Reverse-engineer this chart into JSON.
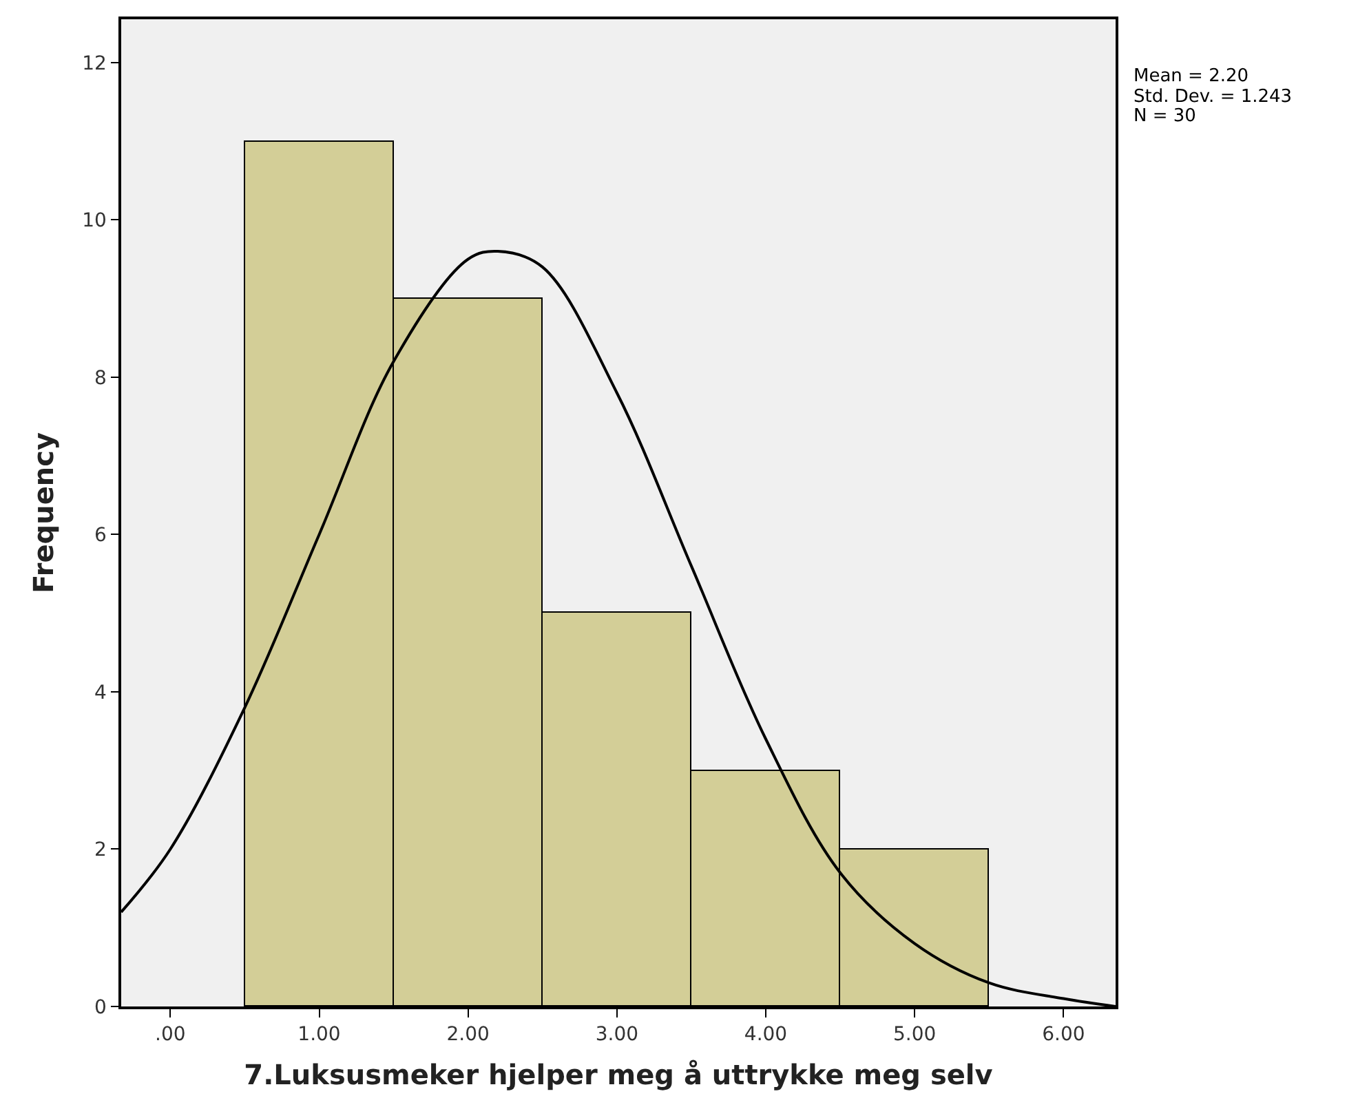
{
  "chart_data": {
    "type": "histogram",
    "xlabel": "7.Luksusmeker hjelper meg å uttrykke meg selv",
    "ylabel": "Frequency",
    "series": [
      {
        "bins": [
          0.5,
          1.5,
          2.5,
          3.5,
          4.5,
          5.5
        ],
        "values": [
          11,
          9,
          5,
          3,
          2
        ],
        "color": "#d3ce97"
      },
      {
        "type": "line",
        "x": [
          -0.33,
          0,
          0.5,
          1,
          1.5,
          2,
          2.2,
          2.5,
          3,
          3.5,
          4,
          4.5,
          5,
          5.5,
          6,
          6.35
        ],
        "values": [
          1.2,
          2.0,
          3.8,
          6.0,
          8.2,
          9.5,
          9.6,
          9.4,
          7.8,
          5.6,
          3.4,
          1.7,
          0.8,
          0.3,
          0.1,
          0.0
        ],
        "color": "#000000"
      }
    ],
    "xlim": [
      -0.33,
      6.35
    ],
    "ylim": [
      0,
      12.55
    ],
    "xticks": [
      {
        "value": 0,
        "label": ".00"
      },
      {
        "value": 1,
        "label": "1.00"
      },
      {
        "value": 2,
        "label": "2.00"
      },
      {
        "value": 3,
        "label": "3.00"
      },
      {
        "value": 4,
        "label": "4.00"
      },
      {
        "value": 5,
        "label": "5.00"
      },
      {
        "value": 6,
        "label": "6.00"
      }
    ],
    "yticks": [
      0,
      2,
      4,
      6,
      8,
      10,
      12
    ],
    "annotations": [
      "Mean = 2.20",
      "Std. Dev. = 1.243",
      "N = 30"
    ],
    "grid": false
  }
}
